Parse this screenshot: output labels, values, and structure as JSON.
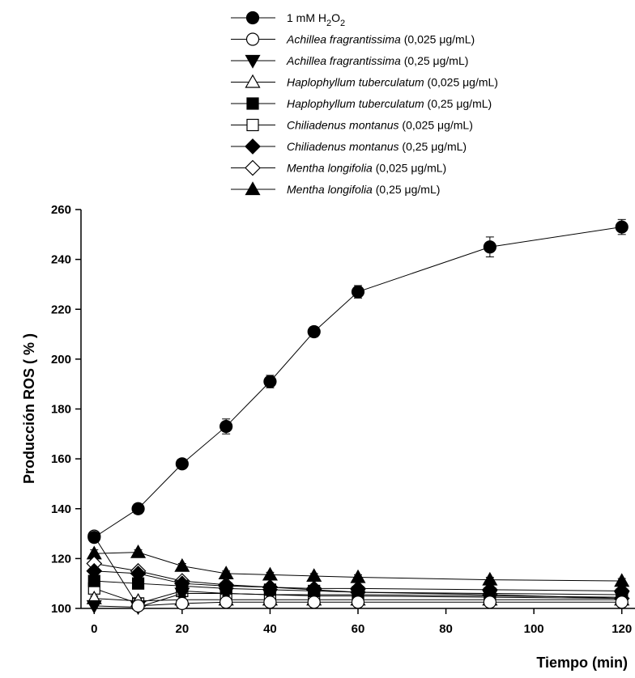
{
  "chart_data": {
    "type": "line",
    "title": "",
    "xlabel": "Tiempo (min)",
    "ylabel": "Producción ROS ( % )",
    "xlim": [
      -3,
      123
    ],
    "ylim": [
      100,
      260
    ],
    "x_ticks": [
      0,
      20,
      40,
      60,
      80,
      100,
      120
    ],
    "y_ticks": [
      100,
      120,
      140,
      160,
      180,
      200,
      220,
      240,
      260
    ],
    "x": [
      0,
      10,
      20,
      30,
      40,
      50,
      60,
      90,
      120
    ],
    "grid": false,
    "legend_position": "top",
    "series": [
      {
        "label_main": "1 mM H",
        "label_sub1": "2",
        "label_mid": "O",
        "label_sub2": "2",
        "label_suffix": "",
        "marker": "circle",
        "filled": true,
        "values": [
          128.5,
          140,
          158,
          173,
          191,
          211,
          227,
          245,
          253
        ],
        "errors": [
          1,
          2,
          1.5,
          3,
          2.5,
          2,
          2.5,
          4,
          3
        ]
      },
      {
        "label_italic": "Achillea fragrantissima",
        "label_suffix": " (0,025 μg/mL)",
        "marker": "circle",
        "filled": false,
        "values": [
          129,
          101,
          102,
          102.5,
          102.5,
          102.5,
          102.5,
          102.5,
          102.5
        ],
        "errors": [
          1,
          0.5,
          1,
          1,
          1,
          1,
          1,
          1,
          1
        ]
      },
      {
        "label_italic": "Achillea fragrantissima",
        "label_suffix": " (0,25 μg/mL)",
        "marker": "triangle-down",
        "filled": true,
        "values": [
          101,
          100.5,
          106,
          106,
          105.5,
          105.5,
          105.5,
          105,
          104.5
        ],
        "errors": [
          1,
          1,
          1,
          1,
          1,
          1,
          1,
          1,
          1
        ]
      },
      {
        "label_italic": "Haplophyllum tuberculatum",
        "label_suffix": " (0,025 μg/mL)",
        "marker": "triangle-up",
        "filled": false,
        "values": [
          104,
          103,
          103.5,
          103.5,
          103.5,
          103.5,
          103.5,
          103.5,
          103.5
        ],
        "errors": [
          1,
          1,
          1,
          1,
          1,
          1,
          1,
          1,
          1
        ]
      },
      {
        "label_italic": "Haplophyllum tuberculatum",
        "label_suffix": " (0,25 μg/mL)",
        "marker": "square",
        "filled": true,
        "values": [
          111,
          110,
          109,
          108,
          107.5,
          107,
          106.5,
          106,
          105.5
        ],
        "errors": [
          1,
          1,
          1,
          1,
          1,
          1,
          1,
          1,
          1
        ]
      },
      {
        "label_italic": "Chiliadenus montanus",
        "label_suffix": " (0,025 μg/mL)",
        "marker": "square",
        "filled": false,
        "values": [
          108,
          102,
          107,
          106,
          105.5,
          105,
          105,
          104.5,
          104
        ],
        "errors": [
          1,
          1,
          1,
          1,
          1,
          1,
          1,
          1,
          1
        ]
      },
      {
        "label_italic": "Chiliadenus montanus",
        "label_suffix": "  (0,25 μg/mL)",
        "marker": "diamond",
        "filled": true,
        "values": [
          115,
          114,
          110,
          109,
          108.5,
          108,
          108,
          107.5,
          107
        ],
        "errors": [
          1.5,
          1,
          1,
          1,
          1,
          1,
          1,
          1,
          1
        ]
      },
      {
        "label_italic": "Mentha longifolia",
        "label_suffix": " (0,025 μg/mL)",
        "marker": "diamond",
        "filled": false,
        "values": [
          118,
          115,
          111,
          109.5,
          108.5,
          107.5,
          106.5,
          105.5,
          104
        ],
        "errors": [
          1.5,
          1,
          1,
          1,
          1,
          1,
          1,
          1,
          1
        ]
      },
      {
        "label_italic": "Mentha longifolia",
        "label_suffix": " (0,25 μg/mL)",
        "marker": "triangle-up",
        "filled": true,
        "values": [
          122,
          122.5,
          117,
          114,
          113.5,
          113,
          112.5,
          111.5,
          111
        ],
        "errors": [
          1.5,
          1,
          1,
          1,
          1,
          1,
          1,
          1,
          1
        ]
      }
    ]
  }
}
